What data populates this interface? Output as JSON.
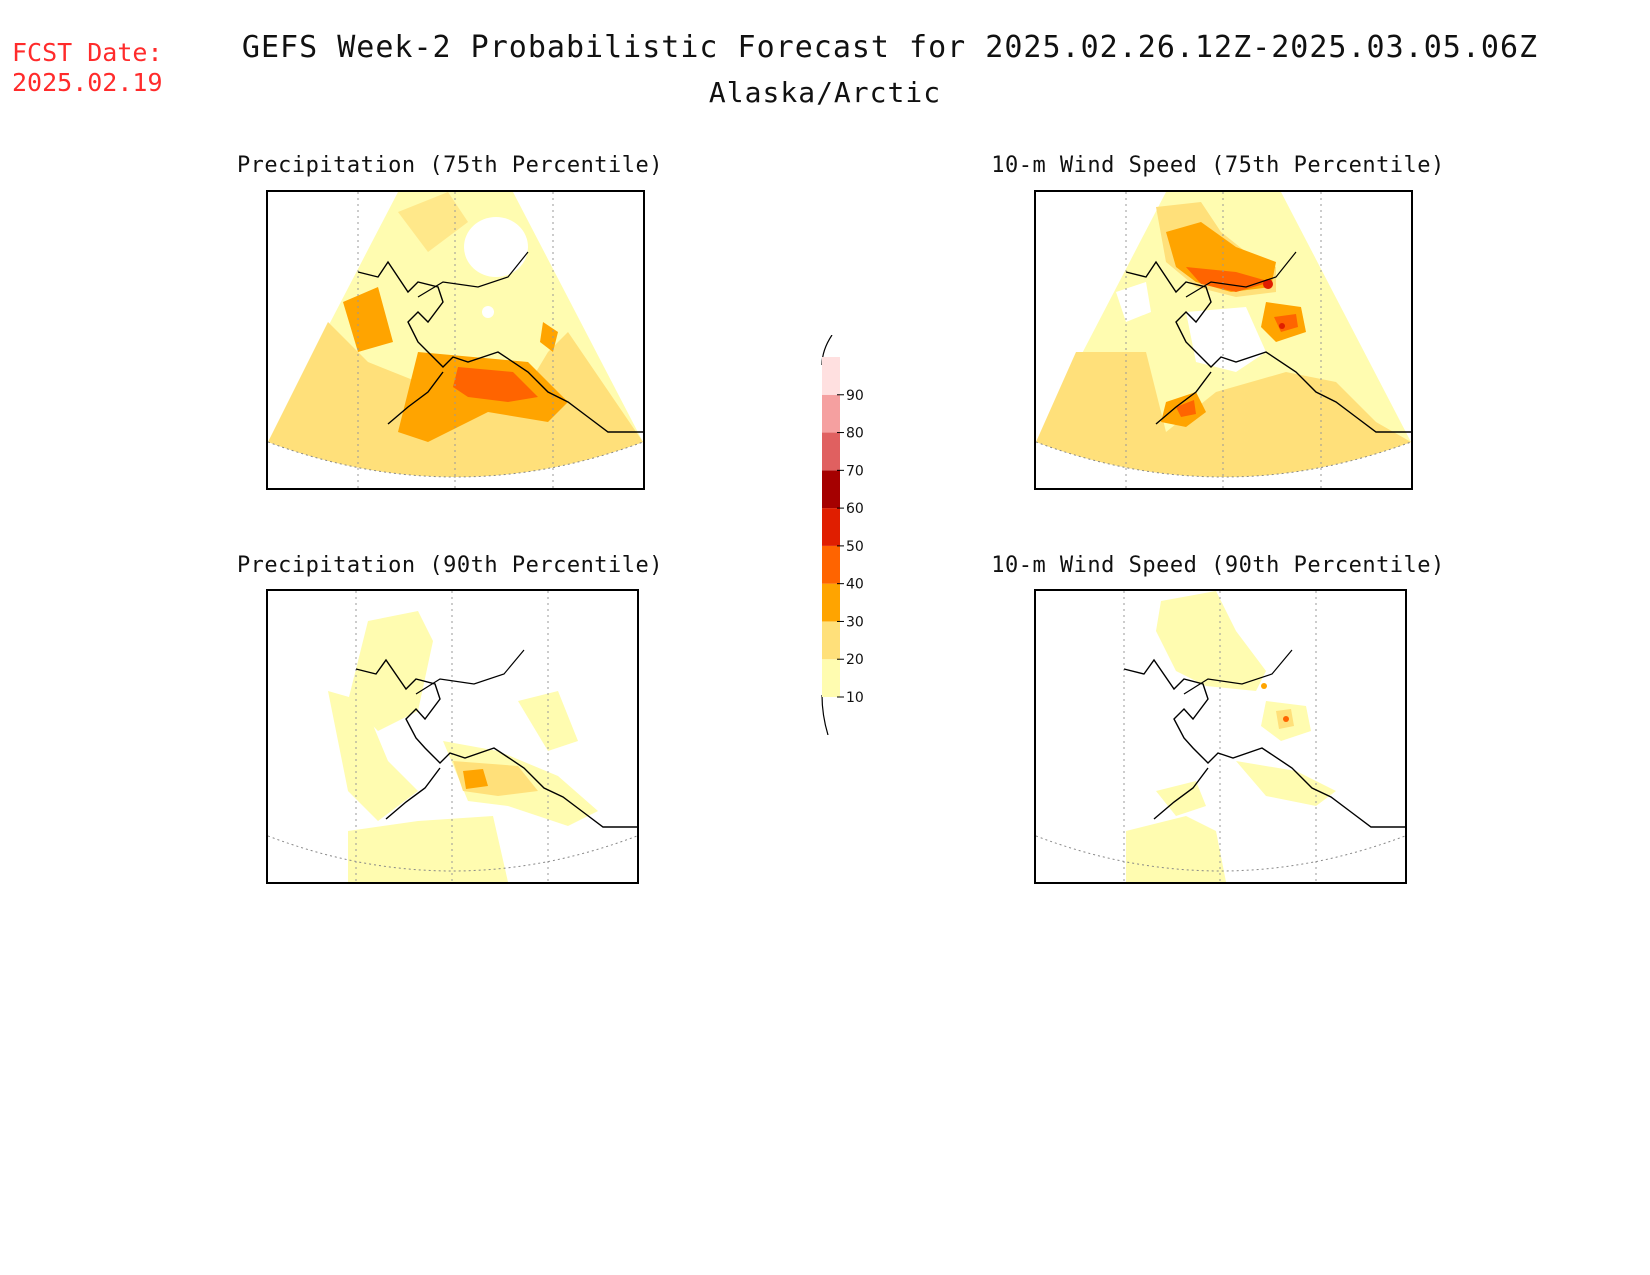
{
  "header": {
    "fcst_label": "FCST Date:",
    "fcst_date": "2025.02.19",
    "title": "GEFS Week-2 Probabilistic Forecast for 2025.02.26.12Z-2025.03.05.06Z",
    "subtitle": "Alaska/Arctic"
  },
  "panels": [
    {
      "id": "precip75",
      "title": "Precipitation (75th Percentile)"
    },
    {
      "id": "wind75",
      "title": "10-m Wind Speed (75th Percentile)"
    },
    {
      "id": "precip90",
      "title": "Precipitation (90th Percentile)"
    },
    {
      "id": "wind90",
      "title": "10-m Wind Speed (90th Percentile)"
    }
  ],
  "colorbar": {
    "levels": [
      "10",
      "20",
      "30",
      "40",
      "50",
      "60",
      "70",
      "80",
      "90"
    ],
    "colors": [
      "#fffcb0",
      "#ffe07a",
      "#ffa400",
      "#ff6400",
      "#e01e00",
      "#a50000",
      "#e06060",
      "#f5a0a0",
      "#ffe0e0"
    ]
  }
}
